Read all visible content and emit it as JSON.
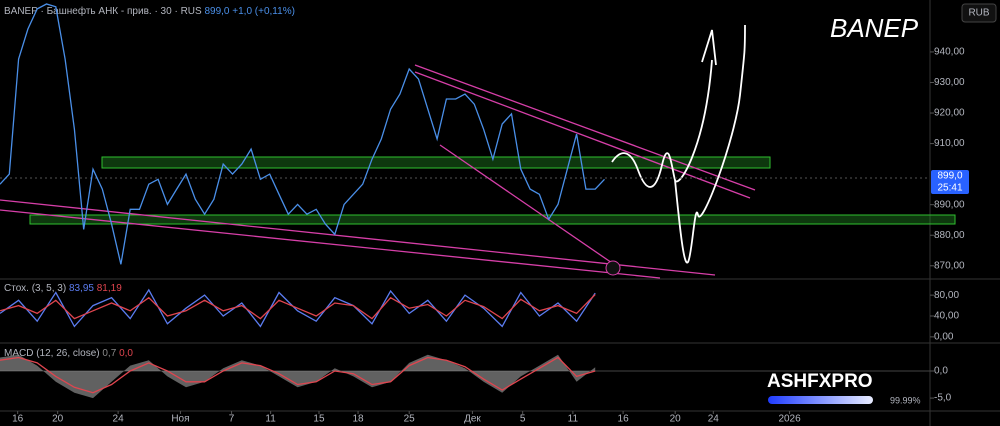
{
  "header": {
    "symbol_line": "BANEP · Башнефть АНК - прив. · 30 · RUS",
    "last": "899,0",
    "change": "+1,0 (+0,11%)"
  },
  "watermark": "BANEP",
  "currency": "RUB",
  "price_badge": {
    "price": "899,0",
    "timer": "25:41"
  },
  "logo": {
    "brand": "ASHFXPRO",
    "progress": "99.99%"
  },
  "chart_data": [
    {
      "type": "line",
      "color": "#4a8fe8",
      "x": [
        0,
        1,
        2,
        3,
        4,
        5,
        6,
        7,
        8,
        9,
        10,
        11,
        12,
        13,
        14,
        15,
        16,
        17,
        18,
        19,
        20,
        21,
        22,
        23,
        24,
        25,
        26,
        27,
        28,
        29,
        30,
        31,
        32,
        33,
        34,
        35,
        36,
        37,
        38,
        39,
        40,
        41,
        42,
        43,
        44,
        45,
        46,
        47,
        48,
        49,
        50,
        51,
        52,
        53,
        54,
        55,
        56,
        57,
        58,
        59,
        60,
        61,
        62,
        63,
        64,
        65
      ],
      "values": [
        896.7,
        900,
        937.7,
        947.5,
        954.1,
        955.7,
        954.8,
        937.7,
        914.7,
        881.9,
        901.6,
        895.1,
        883.6,
        870.5,
        888.5,
        888.5,
        896.7,
        898.3,
        890.1,
        895.1,
        900,
        891.8,
        886.9,
        891.8,
        903.3,
        900,
        903.3,
        908.2,
        898.3,
        900,
        893.4,
        886.9,
        890.1,
        886.9,
        888.5,
        883.6,
        880.3,
        890.1,
        893.4,
        896.7,
        904.9,
        911.5,
        921.3,
        926.2,
        934.4,
        931.1,
        921.3,
        911.5,
        924.6,
        924.6,
        926.2,
        922.9,
        914.7,
        904.9,
        916.4,
        919.7,
        901.6,
        895.1,
        893.4,
        885.2,
        890.1,
        901.6,
        913.1,
        895.1,
        895.1,
        898.3
      ],
      "xlim": [
        0,
        100
      ],
      "ylim": [
        866,
        957
      ],
      "yticks": [
        {
          "value": 870,
          "label": "870,00"
        },
        {
          "value": 880,
          "label": "880,00"
        },
        {
          "value": 890,
          "label": "890,00"
        },
        {
          "value": 910,
          "label": "910,00"
        },
        {
          "value": 920,
          "label": "920,00"
        },
        {
          "value": 930,
          "label": "930,00"
        },
        {
          "value": 940,
          "label": "940,00"
        }
      ]
    },
    {
      "type": "line",
      "title": "Стох. (3, 5, 3)",
      "x": [
        0,
        2,
        4,
        6,
        8,
        10,
        12,
        14,
        16,
        18,
        20,
        22,
        24,
        26,
        28,
        30,
        32,
        34,
        36,
        38,
        40,
        42,
        44,
        46,
        48,
        50,
        52,
        54,
        56,
        58,
        60,
        62,
        64
      ],
      "series": [
        {
          "color": "#5b7cf0",
          "last_label": "83,95",
          "values": [
            45,
            70,
            30,
            85,
            20,
            60,
            75,
            35,
            90,
            25,
            55,
            80,
            40,
            65,
            20,
            85,
            50,
            30,
            75,
            60,
            25,
            88,
            45,
            70,
            30,
            80,
            55,
            20,
            85,
            40,
            65,
            30,
            83.95
          ]
        },
        {
          "color": "#e0454f",
          "last_label": "81,19",
          "values": [
            50,
            60,
            45,
            70,
            35,
            50,
            65,
            50,
            75,
            40,
            50,
            70,
            50,
            60,
            35,
            70,
            55,
            40,
            65,
            60,
            35,
            75,
            55,
            62,
            40,
            70,
            58,
            35,
            72,
            50,
            60,
            45,
            81.19
          ]
        }
      ],
      "xlim": [
        0,
        100
      ],
      "ylim": [
        -6,
        109
      ],
      "yticks": [
        {
          "value": 0,
          "label": "0,00"
        },
        {
          "value": 40,
          "label": "40,00"
        },
        {
          "value": 80,
          "label": "80,00"
        }
      ]
    },
    {
      "type": "area",
      "title": "MACD (12, 26, close)",
      "x": [
        0,
        2,
        4,
        6,
        8,
        10,
        12,
        14,
        16,
        18,
        20,
        22,
        24,
        26,
        28,
        30,
        32,
        34,
        36,
        38,
        40,
        42,
        44,
        46,
        48,
        50,
        52,
        54,
        56,
        58,
        60,
        62,
        64
      ],
      "series": [
        {
          "style": "area",
          "color": "#8a8a8a",
          "last_label": "0,7",
          "values": [
            2.5,
            3,
            1,
            -2,
            -4,
            -5,
            -2,
            1,
            2,
            -1,
            -3,
            -2,
            0.5,
            2,
            1,
            -1,
            -3,
            -2,
            0.5,
            -1,
            -3,
            -2,
            1.5,
            3,
            2,
            0.5,
            -2,
            -4,
            -1,
            1,
            3,
            -2,
            0.7
          ]
        },
        {
          "style": "line",
          "color": "#e0454f",
          "last_label": "0,0",
          "values": [
            2,
            2.5,
            1.5,
            -1,
            -3,
            -4,
            -2.5,
            0,
            1.5,
            0,
            -2,
            -2,
            0,
            1.5,
            1,
            -0.5,
            -2.5,
            -2,
            0,
            -0.5,
            -2.5,
            -2,
            1,
            2.5,
            2,
            0.8,
            -1.5,
            -3.5,
            -1.5,
            0.5,
            2.5,
            -1,
            0
          ]
        }
      ],
      "xlim": [
        0,
        100
      ],
      "ylim": [
        -7.2,
        4.8
      ],
      "yticks": [
        {
          "value": -5,
          "label": "-5,0"
        },
        {
          "value": 0,
          "label": "0,0"
        }
      ],
      "xticks": [
        {
          "value": 1.9,
          "label": "16"
        },
        {
          "value": 6.2,
          "label": "20"
        },
        {
          "value": 12.7,
          "label": "24"
        },
        {
          "value": 19.4,
          "label": "Ноя"
        },
        {
          "value": 24.9,
          "label": "7"
        },
        {
          "value": 29.1,
          "label": "11"
        },
        {
          "value": 34.3,
          "label": "15"
        },
        {
          "value": 38.5,
          "label": "18"
        },
        {
          "value": 44,
          "label": "25"
        },
        {
          "value": 50.8,
          "label": "Дек"
        },
        {
          "value": 56.2,
          "label": "5"
        },
        {
          "value": 61.6,
          "label": "11"
        },
        {
          "value": 67,
          "label": "16"
        },
        {
          "value": 72.6,
          "label": "20"
        },
        {
          "value": 76.7,
          "label": "24"
        },
        {
          "value": 84.9,
          "label": "2026"
        }
      ]
    }
  ]
}
